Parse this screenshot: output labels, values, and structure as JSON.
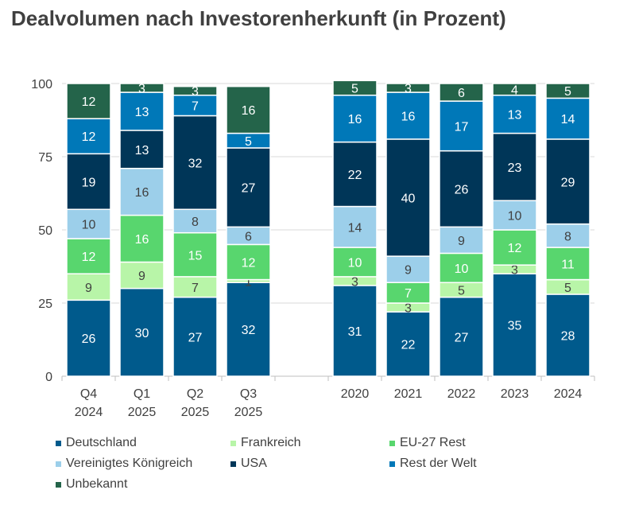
{
  "chart_data": {
    "type": "bar",
    "stacked": true,
    "title": "Dealvolumen nach Investorenherkunft (in Prozent)",
    "xlabel": "",
    "ylabel": "",
    "ylim": [
      0,
      100
    ],
    "yticks": [
      0,
      25,
      50,
      75,
      100
    ],
    "grid": true,
    "legend_position": "bottom",
    "categories": [
      [
        "Q4",
        "2024"
      ],
      [
        "Q1",
        "2025"
      ],
      [
        "Q2",
        "2025"
      ],
      [
        "Q3",
        "2025"
      ],
      null,
      [
        "2020"
      ],
      [
        "2021"
      ],
      [
        "2022"
      ],
      [
        "2023"
      ],
      [
        "2024"
      ]
    ],
    "series": [
      {
        "name": "Deutschland",
        "color": "#005a8c",
        "label_color": "#ffffff",
        "values": [
          26,
          30,
          27,
          32,
          null,
          31,
          22,
          27,
          35,
          28
        ]
      },
      {
        "name": "Frankreich",
        "color": "#b8f5a8",
        "label_color": "#404040",
        "values": [
          9,
          9,
          7,
          1,
          null,
          3,
          3,
          5,
          3,
          5
        ]
      },
      {
        "name": "EU-27 Rest",
        "color": "#58d66e",
        "label_color": "#ffffff",
        "values": [
          12,
          16,
          15,
          12,
          null,
          10,
          7,
          10,
          12,
          11
        ]
      },
      {
        "name": "Vereinigtes Königreich",
        "color": "#9ccfea",
        "label_color": "#404040",
        "values": [
          10,
          16,
          8,
          6,
          null,
          14,
          9,
          9,
          10,
          8
        ]
      },
      {
        "name": "USA",
        "color": "#003658",
        "label_color": "#ffffff",
        "values": [
          19,
          13,
          32,
          27,
          null,
          22,
          40,
          26,
          23,
          29
        ]
      },
      {
        "name": "Rest der Welt",
        "color": "#0078b8",
        "label_color": "#ffffff",
        "values": [
          12,
          13,
          7,
          5,
          null,
          16,
          16,
          17,
          13,
          14
        ]
      },
      {
        "name": "Unbekannt",
        "color": "#24644a",
        "label_color": "#ffffff",
        "values": [
          12,
          3,
          3,
          16,
          null,
          5,
          3,
          6,
          4,
          5
        ]
      }
    ]
  }
}
